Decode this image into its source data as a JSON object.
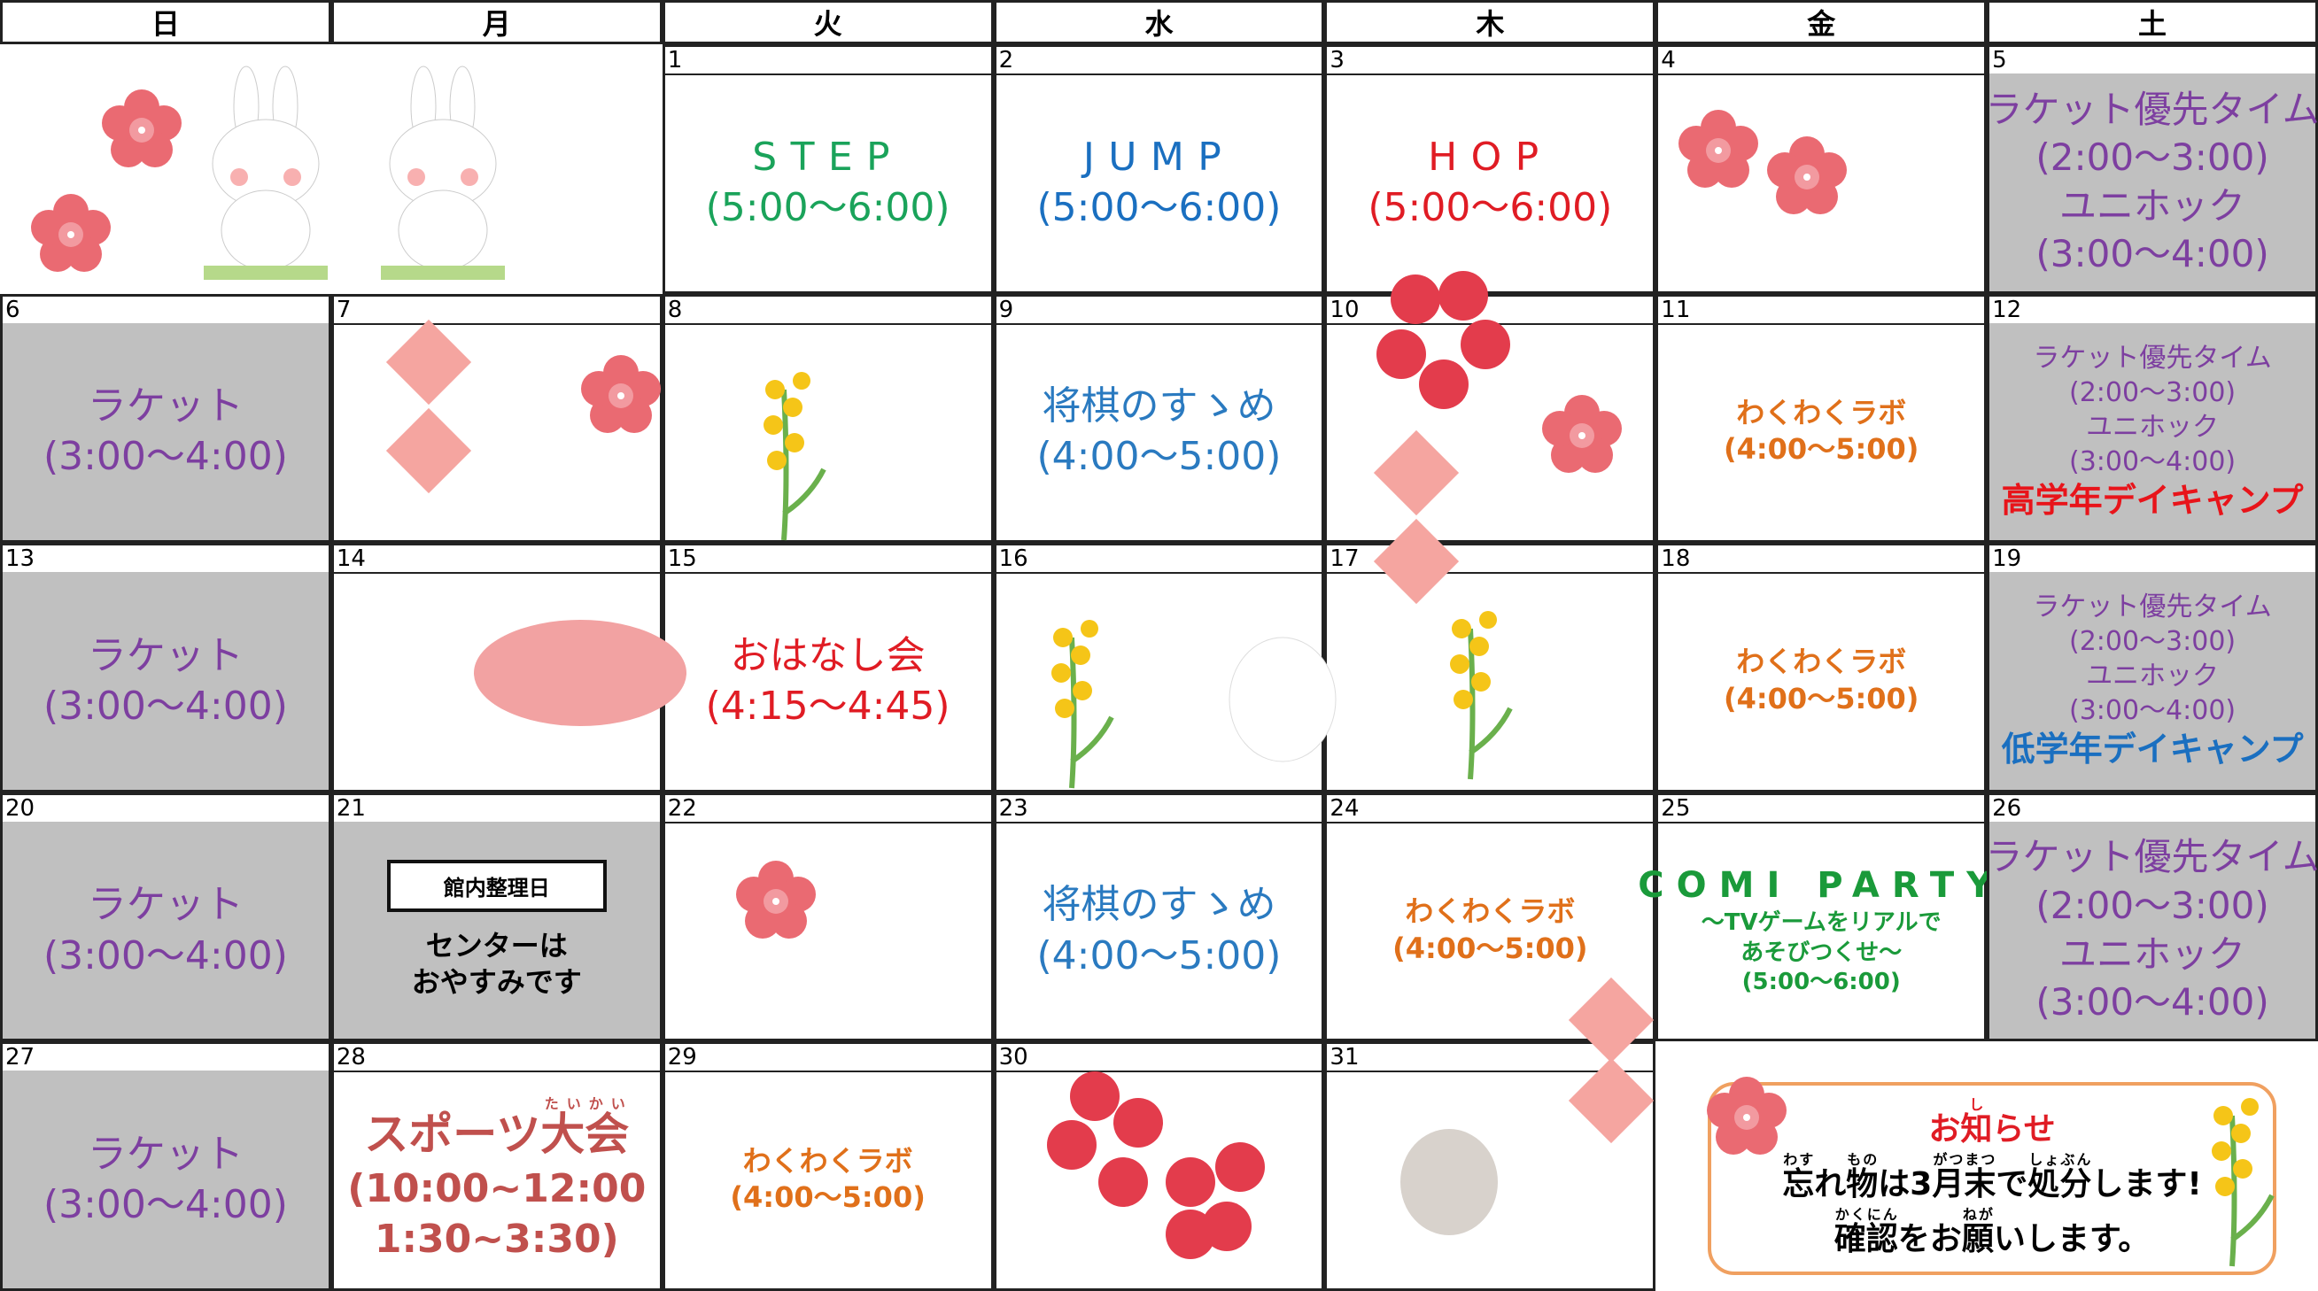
{
  "calendar": {
    "weekdays": [
      "日",
      "月",
      "火",
      "水",
      "木",
      "金",
      "土"
    ],
    "weeks": [
      [
        null,
        null,
        {
          "day": 1,
          "lines": [
            "STEP",
            "(5:00〜6:00)"
          ],
          "color": "#1aa35a"
        },
        {
          "day": 2,
          "lines": [
            "JUMP",
            "(5:00〜6:00)"
          ],
          "color": "#1a6fc0"
        },
        {
          "day": 3,
          "lines": [
            "HOP",
            "(5:00〜6:00)"
          ],
          "color": "#e01c24"
        },
        {
          "day": 4,
          "lines": []
        },
        {
          "day": 5,
          "lines": [
            "ラケット優先タイム",
            "(2:00〜3:00)",
            "ユニホック",
            "(3:00〜4:00)"
          ],
          "color": "#7d3fa0",
          "background": "#c0c0c0"
        }
      ],
      [
        {
          "day": 6,
          "lines": [
            "ラケット",
            "(3:00〜4:00)"
          ],
          "color": "#7d3fa0",
          "background": "#c0c0c0"
        },
        {
          "day": 7,
          "lines": []
        },
        {
          "day": 8,
          "lines": []
        },
        {
          "day": 9,
          "lines": [
            "将棋のすゝめ",
            "(4:00〜5:00)"
          ],
          "color": "#2a7ac0"
        },
        {
          "day": 10,
          "lines": []
        },
        {
          "day": 11,
          "lines": [
            "わくわくラボ",
            "(4:00〜5:00)"
          ],
          "color": "#e0701a"
        },
        {
          "day": 12,
          "lines": [
            "ラケット優先タイム",
            "(2:00〜3:00)",
            "ユニホック",
            "(3:00〜4:00)"
          ],
          "color": "#7d3fa0",
          "background": "#c0c0c0",
          "note": "高学年デイキャンプ",
          "note_color": "#e8141a"
        }
      ],
      [
        {
          "day": 13,
          "lines": [
            "ラケット",
            "(3:00〜4:00)"
          ],
          "color": "#7d3fa0",
          "background": "#c0c0c0"
        },
        {
          "day": 14,
          "lines": []
        },
        {
          "day": 15,
          "lines": [
            "おはなし会",
            "(4:15〜4:45)"
          ],
          "color": "#e01c24"
        },
        {
          "day": 16,
          "lines": []
        },
        {
          "day": 17,
          "lines": []
        },
        {
          "day": 18,
          "lines": [
            "わくわくラボ",
            "(4:00〜5:00)"
          ],
          "color": "#e0701a"
        },
        {
          "day": 19,
          "lines": [
            "ラケット優先タイム",
            "(2:00〜3:00)",
            "ユニホック",
            "(3:00〜4:00)"
          ],
          "color": "#7d3fa0",
          "background": "#c0c0c0",
          "note": "低学年デイキャンプ",
          "note_color": "#1a6fc0"
        }
      ],
      [
        {
          "day": 20,
          "lines": [
            "ラケット",
            "(3:00〜4:00)"
          ],
          "color": "#7d3fa0",
          "background": "#c0c0c0"
        },
        {
          "day": 21,
          "box": "館内整理日",
          "lines": [
            "センターは",
            "おやすみです"
          ],
          "color": "#000000",
          "background": "#c0c0c0"
        },
        {
          "day": 22,
          "lines": []
        },
        {
          "day": 23,
          "lines": [
            "将棋のすゝめ",
            "(4:00〜5:00)"
          ],
          "color": "#2a7ac0"
        },
        {
          "day": 24,
          "lines": [
            "わくわくラボ",
            "(4:00〜5:00)"
          ],
          "color": "#e0701a"
        },
        {
          "day": 25,
          "lines": [
            "COMI PARTY",
            "〜TVゲームをリアルで",
            "あそびつくせ〜",
            "(5:00〜6:00)"
          ],
          "color": "#1a9a3a"
        },
        {
          "day": 26,
          "lines": [
            "ラケット優先タイム",
            "(2:00〜3:00)",
            "ユニホック",
            "(3:00〜4:00)"
          ],
          "color": "#7d3fa0",
          "background": "#c0c0c0"
        }
      ],
      [
        {
          "day": 27,
          "lines": [
            "ラケット",
            "(3:00〜4:00)"
          ],
          "color": "#7d3fa0",
          "background": "#c0c0c0"
        },
        {
          "day": 28,
          "lines": [
            {
              "parts": [
                {
                  "base": "スポーツ"
                },
                {
                  "base": "大会",
                  "ruby": "たいかい"
                }
              ]
            },
            "(10:00~12:00",
            "1:30~3:30)"
          ],
          "color": "#c0504d"
        },
        {
          "day": 29,
          "lines": [
            "わくわくラボ",
            "(4:00〜5:00)"
          ],
          "color": "#e0701a"
        },
        {
          "day": 30,
          "lines": []
        },
        {
          "day": 31,
          "lines": []
        },
        null,
        null
      ]
    ],
    "notice": {
      "title": [
        {
          "base": "お"
        },
        {
          "base": "知",
          "ruby": "し"
        },
        {
          "base": "らせ"
        }
      ],
      "lines": [
        [
          {
            "base": "忘",
            "ruby": "わす"
          },
          {
            "base": "れ"
          },
          {
            "base": "物",
            "ruby": "もの"
          },
          {
            "base": "は3"
          },
          {
            "base": "月",
            "ruby": "がつ"
          },
          {
            "base": "末",
            "ruby": "まつ"
          },
          {
            "base": "で"
          },
          {
            "base": "処分",
            "ruby": "しょぶん"
          },
          {
            "base": "します!"
          }
        ],
        [
          {
            "base": "確認",
            "ruby": "かくにん"
          },
          {
            "base": "を"
          },
          {
            "base": "お"
          },
          {
            "base": "願",
            "ruby": "ねが"
          },
          {
            "base": "いします。"
          }
        ]
      ]
    }
  }
}
